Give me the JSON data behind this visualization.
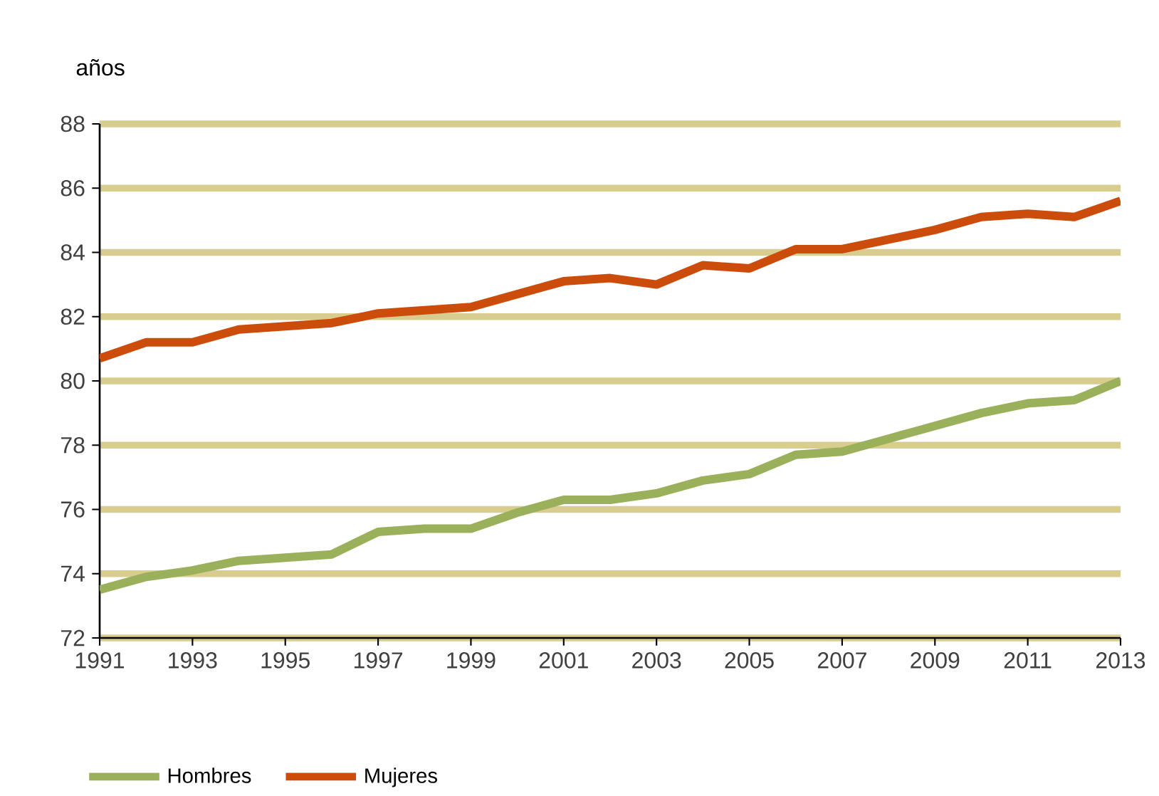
{
  "chart_data": {
    "type": "line",
    "ylabel": "años",
    "x": [
      1991,
      1992,
      1993,
      1994,
      1995,
      1996,
      1997,
      1998,
      1999,
      2000,
      2001,
      2002,
      2003,
      2004,
      2005,
      2006,
      2007,
      2008,
      2009,
      2010,
      2011,
      2012,
      2013
    ],
    "series": [
      {
        "name": "Hombres",
        "color": "#9bb05a",
        "values": [
          73.5,
          73.9,
          74.1,
          74.4,
          74.5,
          74.6,
          75.3,
          75.4,
          75.4,
          75.9,
          76.3,
          76.3,
          76.5,
          76.9,
          77.1,
          77.7,
          77.8,
          78.2,
          78.6,
          79.0,
          79.3,
          79.4,
          80.0
        ]
      },
      {
        "name": "Mujeres",
        "color": "#cc4c0c",
        "values": [
          80.7,
          81.2,
          81.2,
          81.6,
          81.7,
          81.8,
          82.1,
          82.2,
          82.3,
          82.7,
          83.1,
          83.2,
          83.0,
          83.6,
          83.5,
          84.1,
          84.1,
          84.4,
          84.7,
          85.1,
          85.2,
          85.1,
          85.6
        ]
      }
    ],
    "xlim": [
      1991,
      2013
    ],
    "xticks": [
      1991,
      1993,
      1995,
      1997,
      1999,
      2001,
      2003,
      2005,
      2007,
      2009,
      2011,
      2013
    ],
    "ylim": [
      72,
      88
    ],
    "yticks": [
      72,
      74,
      76,
      78,
      80,
      82,
      84,
      86,
      88
    ],
    "grid": "y",
    "legend": "bottom left",
    "marker": "none",
    "line_style": "solid"
  }
}
